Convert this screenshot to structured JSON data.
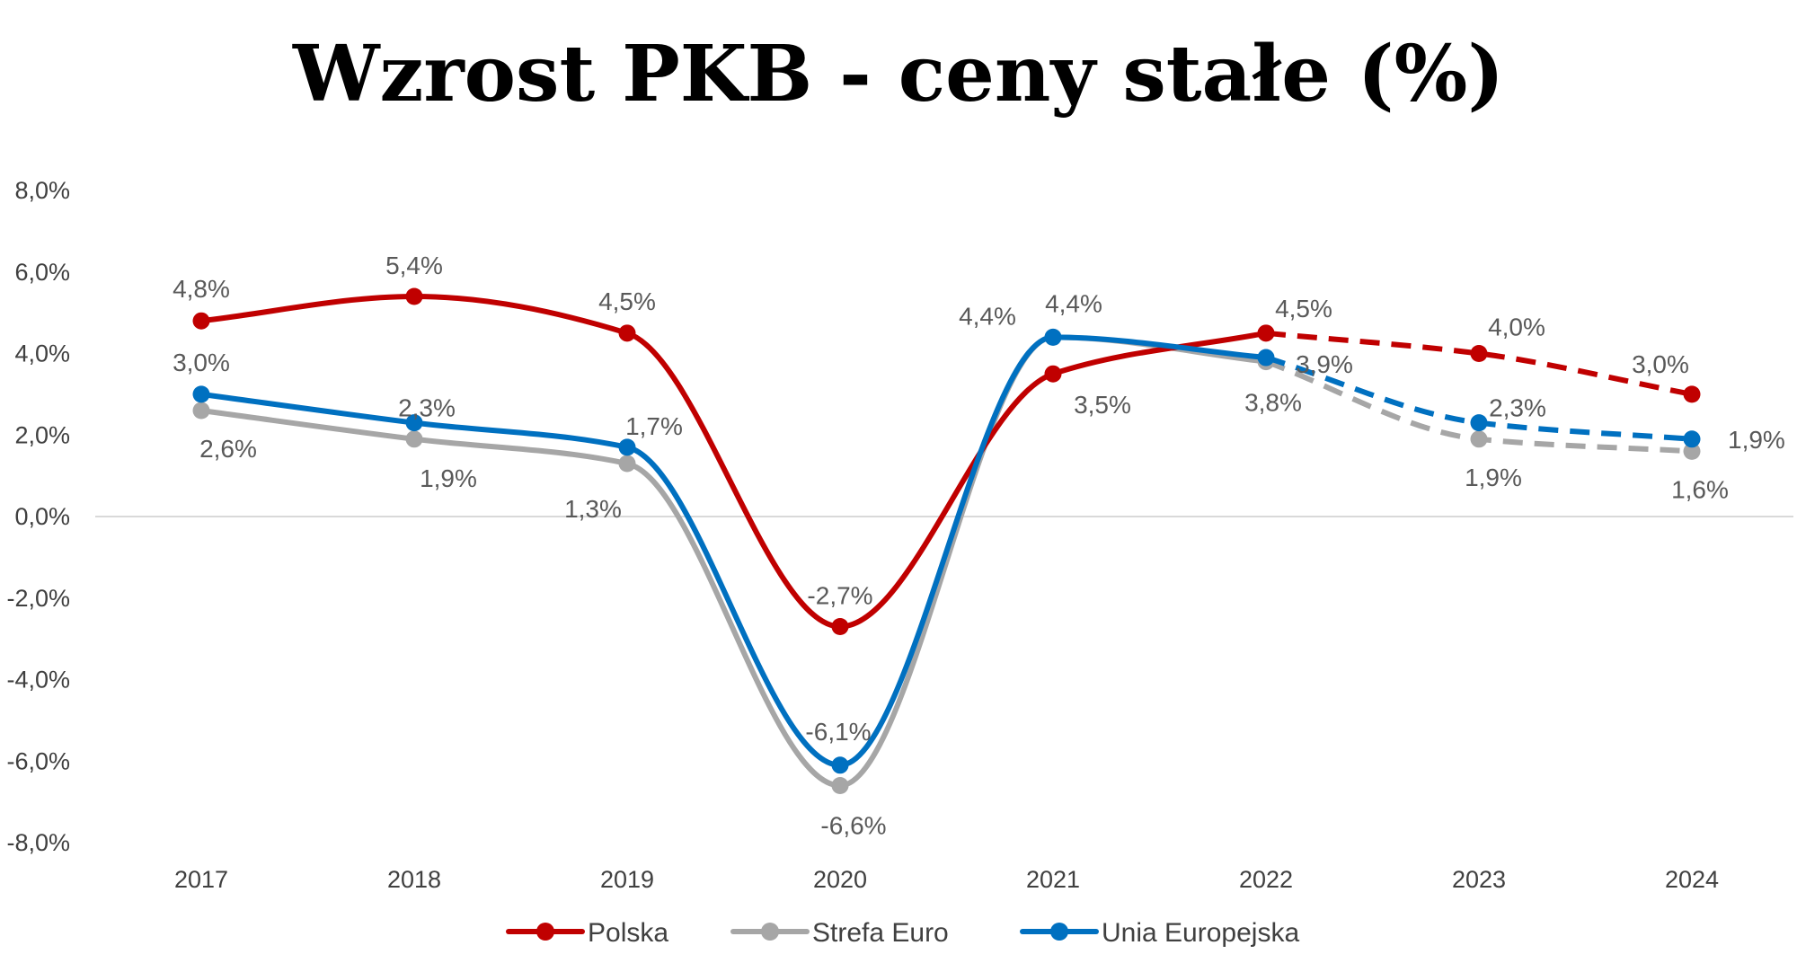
{
  "chart_data": {
    "type": "line",
    "title": "Wzrost PKB - ceny stałe (%)",
    "xlabel": "",
    "ylabel": "",
    "categories": [
      "2017",
      "2018",
      "2019",
      "2020",
      "2021",
      "2022",
      "2023",
      "2024"
    ],
    "ylim": [
      -8,
      8
    ],
    "yticks": [
      "8,0%",
      "6,0%",
      "4,0%",
      "2,0%",
      "0,0%",
      "-2,0%",
      "-4,0%",
      "-6,0%",
      "-8,0%"
    ],
    "ytick_values": [
      8,
      6,
      4,
      2,
      0,
      -2,
      -4,
      -6,
      -8
    ],
    "grid": false,
    "smoothed": true,
    "forecast_from_index": 5,
    "forecast_line_style": "dashed",
    "legend_position": "bottom",
    "series": [
      {
        "name": "Polska",
        "color": "#C00000",
        "values": [
          4.8,
          5.4,
          4.5,
          -2.7,
          3.5,
          4.5,
          4.0,
          3.0
        ],
        "labels": [
          "4,8%",
          "5,4%",
          "4,5%",
          "-2,7%",
          "3,5%",
          "4,5%",
          "4,0%",
          "3,0%"
        ]
      },
      {
        "name": "Strefa Euro",
        "color": "#A6A6A6",
        "values": [
          2.6,
          1.9,
          1.3,
          -6.6,
          4.4,
          3.8,
          1.9,
          1.6
        ],
        "labels": [
          "2,6%",
          "1,9%",
          "1,3%",
          "-6,6%",
          "4,4%",
          "3,8%",
          "1,9%",
          "1,6%"
        ]
      },
      {
        "name": "Unia Europejska",
        "color": "#0070C0",
        "values": [
          3.0,
          2.3,
          1.7,
          -6.1,
          4.4,
          3.9,
          2.3,
          1.9
        ],
        "labels": [
          "3,0%",
          "2,3%",
          "1,7%",
          "-6,1%",
          "4,4%",
          "3,9%",
          "2,3%",
          "1,9%"
        ]
      }
    ]
  }
}
